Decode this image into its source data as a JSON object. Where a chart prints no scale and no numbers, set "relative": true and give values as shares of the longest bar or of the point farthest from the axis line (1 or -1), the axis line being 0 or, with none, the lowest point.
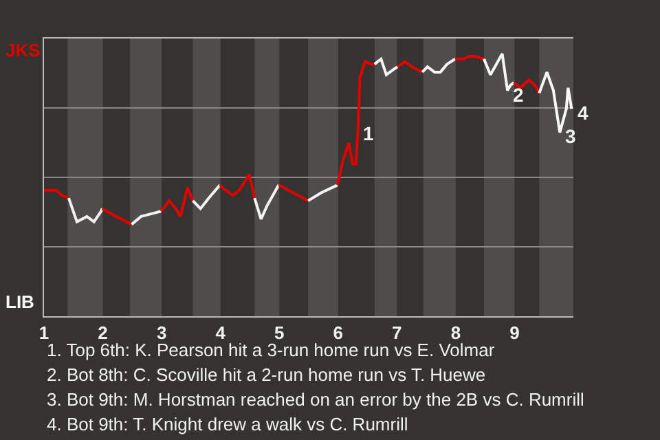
{
  "chart_data": {
    "type": "line",
    "relative": true,
    "xlim": [
      1,
      10
    ],
    "xticks": [
      {
        "value": 1,
        "label": "1"
      },
      {
        "value": 2,
        "label": "2"
      },
      {
        "value": 3,
        "label": "3"
      },
      {
        "value": 4,
        "label": "4"
      },
      {
        "value": 5,
        "label": "5"
      },
      {
        "value": 6,
        "label": "6"
      },
      {
        "value": 7,
        "label": "7"
      },
      {
        "value": 8,
        "label": "8"
      },
      {
        "value": 9,
        "label": "9"
      }
    ],
    "grid": "y",
    "marker": "none",
    "line_style": "solid",
    "series": [
      {
        "color": "#e00000",
        "x": [
          1.0,
          1.21,
          1.31,
          1.42
        ],
        "values": [
          0.48,
          0.48,
          0.46,
          0.45
        ]
      },
      {
        "color": "#f0f0f0",
        "x": [
          1.42,
          1.56,
          1.73,
          1.85,
          1.97,
          1.99
        ],
        "values": [
          0.45,
          0.36,
          0.38,
          0.36,
          0.4,
          0.41
        ]
      },
      {
        "color": "#e10000",
        "x": [
          1.99,
          2.23,
          2.49
        ],
        "values": [
          0.41,
          0.38,
          0.35
        ]
      },
      {
        "color": "#f1f1f1",
        "x": [
          2.49,
          2.65,
          2.82,
          2.99
        ],
        "values": [
          0.35,
          0.38,
          0.39,
          0.4
        ]
      },
      {
        "color": "#e20000",
        "x": [
          2.99,
          3.13,
          3.24,
          3.32,
          3.44,
          3.53
        ],
        "values": [
          0.4,
          0.44,
          0.41,
          0.38,
          0.49,
          0.44
        ]
      },
      {
        "color": "#f2f2f2",
        "x": [
          3.53,
          3.66,
          3.8,
          3.99
        ],
        "values": [
          0.44,
          0.41,
          0.45,
          0.5
        ]
      },
      {
        "color": "#e30000",
        "x": [
          3.99,
          4.09,
          4.21,
          4.32,
          4.49,
          4.58
        ],
        "values": [
          0.5,
          0.48,
          0.46,
          0.48,
          0.54,
          0.45
        ]
      },
      {
        "color": "#f3f3f3",
        "x": [
          4.58,
          4.69,
          4.79,
          4.99
        ],
        "values": [
          0.45,
          0.37,
          0.42,
          0.5
        ]
      },
      {
        "color": "#e40000",
        "x": [
          4.99,
          5.24,
          5.49
        ],
        "values": [
          0.5,
          0.47,
          0.44
        ]
      },
      {
        "color": "#f4f4f4",
        "x": [
          5.49,
          5.71,
          5.99
        ],
        "values": [
          0.44,
          0.47,
          0.5
        ]
      },
      {
        "color": "#e50000",
        "x": [
          5.99,
          6.08,
          6.18,
          6.25,
          6.3,
          6.34,
          6.36,
          6.37,
          6.46,
          6.56,
          6.62
        ],
        "values": [
          0.5,
          0.59,
          0.66,
          0.58,
          0.58,
          0.71,
          0.84,
          0.91,
          0.97,
          0.96,
          0.96
        ]
      },
      {
        "color": "#f5f5f5",
        "x": [
          6.62,
          6.73,
          6.82,
          6.94,
          7.01
        ],
        "values": [
          0.96,
          0.98,
          0.92,
          0.94,
          0.95
        ]
      },
      {
        "color": "#e60000",
        "x": [
          7.01,
          7.13,
          7.26,
          7.43
        ],
        "values": [
          0.95,
          0.97,
          0.95,
          0.93
        ]
      },
      {
        "color": "#f6f6f6",
        "x": [
          7.43,
          7.52,
          7.64,
          7.74,
          7.85,
          7.99
        ],
        "values": [
          0.93,
          0.95,
          0.93,
          0.93,
          0.96,
          0.98
        ]
      },
      {
        "color": "#e70000",
        "x": [
          7.99,
          8.13,
          8.23,
          8.33,
          8.48
        ],
        "values": [
          0.98,
          0.98,
          0.99,
          0.99,
          0.98
        ]
      },
      {
        "color": "#f7f7f7",
        "x": [
          8.48,
          8.59,
          8.69,
          8.79,
          8.88,
          8.93,
          8.99
        ],
        "values": [
          0.98,
          0.92,
          0.96,
          1.0,
          0.86,
          0.88,
          0.89
        ]
      },
      {
        "color": "#e80000",
        "x": [
          8.99,
          9.1,
          9.24,
          9.35,
          9.42
        ],
        "values": [
          0.89,
          0.87,
          0.9,
          0.88,
          0.85
        ]
      },
      {
        "color": "#f8f8f8",
        "x": [
          9.42,
          9.55,
          9.66,
          9.77,
          9.88,
          9.91,
          9.97
        ],
        "values": [
          0.85,
          0.93,
          0.86,
          0.7,
          0.79,
          0.87,
          0.79
        ]
      }
    ],
    "bands": [
      {
        "axis": "x",
        "from": 1.4,
        "to": 2.0,
        "label": null,
        "color": "#4f4d4b"
      },
      {
        "axis": "x",
        "from": 2.46,
        "to": 3.0,
        "label": null,
        "color": "#4f4d4b"
      },
      {
        "axis": "x",
        "from": 3.53,
        "to": 4.0,
        "label": null,
        "color": "#4f4d4b"
      },
      {
        "axis": "x",
        "from": 4.58,
        "to": 5.0,
        "label": null,
        "color": "#4f4d4b"
      },
      {
        "axis": "x",
        "from": 5.49,
        "to": 6.0,
        "label": null,
        "color": "#4f4d4b"
      },
      {
        "axis": "x",
        "from": 6.62,
        "to": 7.0,
        "label": null,
        "color": "#4f4d4b"
      },
      {
        "axis": "x",
        "from": 7.45,
        "to": 8.0,
        "label": null,
        "color": "#4f4d4b"
      },
      {
        "axis": "x",
        "from": 8.48,
        "to": 9.0,
        "label": null,
        "color": "#4f4d4b"
      },
      {
        "axis": "x",
        "from": 9.42,
        "to": 10.0,
        "label": null,
        "color": "#4f4d4b"
      }
    ],
    "annotations": [
      "JKS",
      "LIB",
      {
        "text": "1",
        "x": 6.34,
        "y": 0.71
      },
      {
        "text": "2",
        "x": 8.88,
        "y": 0.86
      },
      {
        "text": "3",
        "x": 9.77,
        "y": 0.7
      },
      {
        "text": "4",
        "x": 9.97,
        "y": 0.79
      },
      "1. Top 6th: K. Pearson hit a 3-run home run vs E. Volmar",
      "2. Bot 8th: C. Scoville hit a 2-run home run vs T. Huewe",
      "3. Bot 9th: M. Horstman reached on an error by the 2B vs C. Rumrill",
      "4. Bot 9th: T. Knight drew a walk vs C. Rumrill"
    ]
  }
}
